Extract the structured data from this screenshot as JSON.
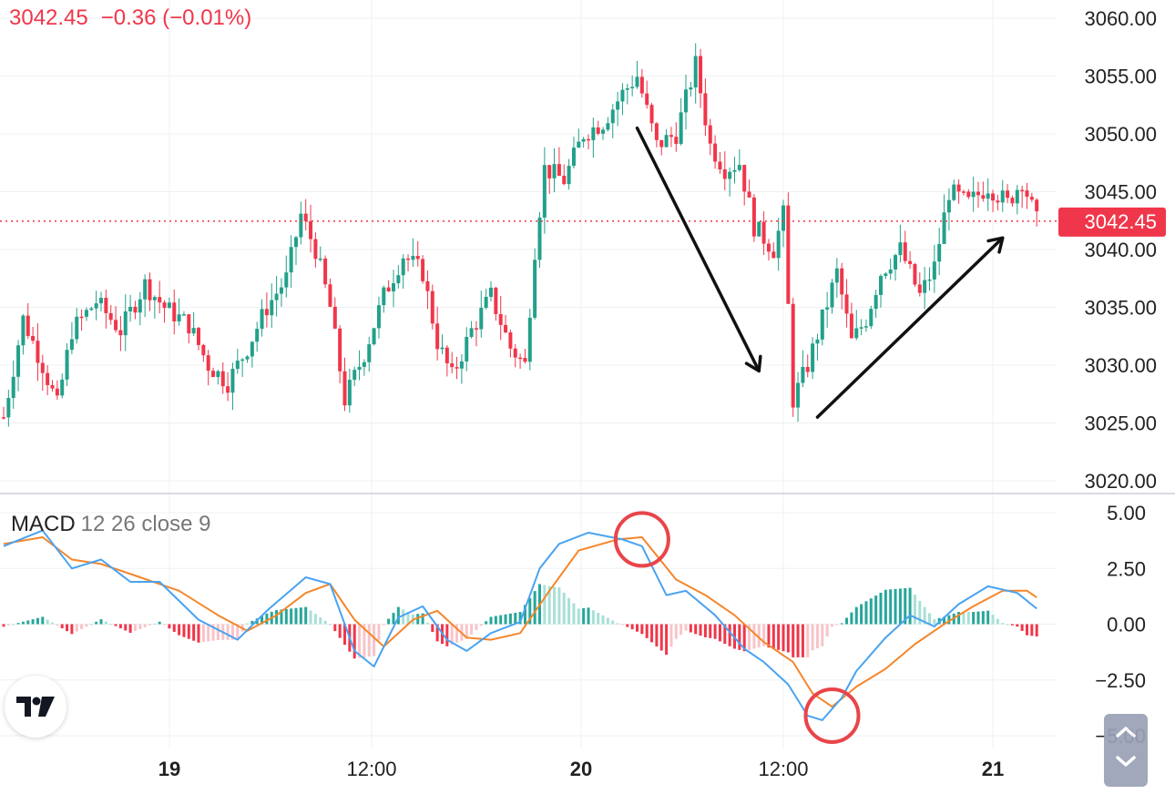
{
  "quote": {
    "price": "3042.45",
    "change": "−0.36",
    "change_pct": "(−0.01%)",
    "color": "#f0364a"
  },
  "macd_label": {
    "name": "MACD",
    "params": "12 26 close 9"
  },
  "colors": {
    "up": "#22a08a",
    "down": "#f0364a",
    "macd": "#4aa3f0",
    "signal": "#f5862a",
    "hist_up_strong": "#26a69a",
    "hist_up_weak": "#a8e0d6",
    "hist_down_strong": "#f0364a",
    "hist_down_weak": "#f8c4c8",
    "annotation": "#111111",
    "circle": "#e8454a"
  },
  "icons": {
    "logo": "tradingview-logo-icon",
    "scroll": "chevron-icon"
  },
  "chart_data": [
    {
      "type": "candlestick",
      "title": "",
      "x_ticks": [
        "19",
        "12:00",
        "20",
        "12:00",
        "21"
      ],
      "ylim": [
        3020,
        3060
      ],
      "y_ticks": [
        "3060.00",
        "3055.00",
        "3050.00",
        "3045.00",
        "3040.00",
        "3035.00",
        "3030.00",
        "3025.00",
        "3020.00"
      ],
      "last_price": "3042.45",
      "close_path": [
        {
          "t": 0,
          "v": 3025.5
        },
        {
          "t": 4,
          "v": 3034
        },
        {
          "t": 8,
          "v": 3030
        },
        {
          "t": 11,
          "v": 3026.5
        },
        {
          "t": 14,
          "v": 3033
        },
        {
          "t": 19,
          "v": 3035.5
        },
        {
          "t": 24,
          "v": 3033
        },
        {
          "t": 29,
          "v": 3037
        },
        {
          "t": 33,
          "v": 3035
        },
        {
          "t": 38,
          "v": 3033.5
        },
        {
          "t": 42,
          "v": 3030
        },
        {
          "t": 46,
          "v": 3028.5
        },
        {
          "t": 50,
          "v": 3031.5
        },
        {
          "t": 54,
          "v": 3035
        },
        {
          "t": 58,
          "v": 3037.5
        },
        {
          "t": 61,
          "v": 3043
        },
        {
          "t": 64,
          "v": 3040
        },
        {
          "t": 67,
          "v": 3035
        },
        {
          "t": 70,
          "v": 3027
        },
        {
          "t": 74,
          "v": 3031
        },
        {
          "t": 78,
          "v": 3036
        },
        {
          "t": 82,
          "v": 3039.5
        },
        {
          "t": 86,
          "v": 3038
        },
        {
          "t": 89,
          "v": 3032
        },
        {
          "t": 92,
          "v": 3029
        },
        {
          "t": 96,
          "v": 3033
        },
        {
          "t": 100,
          "v": 3036
        },
        {
          "t": 104,
          "v": 3031.5
        },
        {
          "t": 107,
          "v": 3030
        },
        {
          "t": 109,
          "v": 3040
        },
        {
          "t": 111,
          "v": 3047
        },
        {
          "t": 115,
          "v": 3046
        },
        {
          "t": 119,
          "v": 3050
        },
        {
          "t": 123,
          "v": 3051
        },
        {
          "t": 127,
          "v": 3053.5
        },
        {
          "t": 130,
          "v": 3055
        },
        {
          "t": 134,
          "v": 3049
        },
        {
          "t": 138,
          "v": 3050
        },
        {
          "t": 142,
          "v": 3056
        },
        {
          "t": 145,
          "v": 3049
        },
        {
          "t": 148,
          "v": 3047
        },
        {
          "t": 151,
          "v": 3047.5
        },
        {
          "t": 154,
          "v": 3042
        },
        {
          "t": 158,
          "v": 3040
        },
        {
          "t": 160,
          "v": 3043
        },
        {
          "t": 162,
          "v": 3027
        },
        {
          "t": 165,
          "v": 3030
        },
        {
          "t": 168,
          "v": 3034
        },
        {
          "t": 171,
          "v": 3038
        },
        {
          "t": 174,
          "v": 3032
        },
        {
          "t": 177,
          "v": 3034
        },
        {
          "t": 180,
          "v": 3038
        },
        {
          "t": 184,
          "v": 3040
        },
        {
          "t": 188,
          "v": 3036
        },
        {
          "t": 191,
          "v": 3038.5
        },
        {
          "t": 194,
          "v": 3045
        },
        {
          "t": 198,
          "v": 3044
        },
        {
          "t": 202,
          "v": 3045.5
        },
        {
          "t": 206,
          "v": 3044
        },
        {
          "t": 209,
          "v": 3046
        },
        {
          "t": 212,
          "v": 3042.45
        }
      ]
    },
    {
      "type": "line",
      "title": "MACD 12 26 close 9",
      "ylim": [
        -5,
        5
      ],
      "y_ticks": [
        "5.00",
        "2.50",
        "0.00",
        "−2.50",
        "−5.00"
      ],
      "series": [
        {
          "role": "macd",
          "points": [
            {
              "t": 0,
              "v": 3.5
            },
            {
              "t": 8,
              "v": 4.2
            },
            {
              "t": 14,
              "v": 2.5
            },
            {
              "t": 20,
              "v": 2.9
            },
            {
              "t": 26,
              "v": 1.9
            },
            {
              "t": 32,
              "v": 1.9
            },
            {
              "t": 40,
              "v": 0.2
            },
            {
              "t": 48,
              "v": -0.7
            },
            {
              "t": 54,
              "v": 0.6
            },
            {
              "t": 62,
              "v": 2.1
            },
            {
              "t": 67,
              "v": 1.8
            },
            {
              "t": 72,
              "v": -1.2
            },
            {
              "t": 76,
              "v": -1.9
            },
            {
              "t": 81,
              "v": 0.3
            },
            {
              "t": 86,
              "v": 0.8
            },
            {
              "t": 91,
              "v": -0.7
            },
            {
              "t": 95,
              "v": -1.2
            },
            {
              "t": 100,
              "v": -0.4
            },
            {
              "t": 106,
              "v": 0.1
            },
            {
              "t": 110,
              "v": 2.5
            },
            {
              "t": 114,
              "v": 3.6
            },
            {
              "t": 120,
              "v": 4.1
            },
            {
              "t": 127,
              "v": 3.8
            },
            {
              "t": 131,
              "v": 3.5
            },
            {
              "t": 136,
              "v": 1.3
            },
            {
              "t": 140,
              "v": 1.5
            },
            {
              "t": 146,
              "v": 0.4
            },
            {
              "t": 152,
              "v": -1.1
            },
            {
              "t": 156,
              "v": -1.7
            },
            {
              "t": 161,
              "v": -2.7
            },
            {
              "t": 165,
              "v": -4.1
            },
            {
              "t": 168,
              "v": -4.3
            },
            {
              "t": 172,
              "v": -3.3
            },
            {
              "t": 175,
              "v": -2.1
            },
            {
              "t": 181,
              "v": -0.6
            },
            {
              "t": 186,
              "v": 0.4
            },
            {
              "t": 191,
              "v": -0.1
            },
            {
              "t": 196,
              "v": 0.9
            },
            {
              "t": 202,
              "v": 1.7
            },
            {
              "t": 208,
              "v": 1.4
            },
            {
              "t": 212,
              "v": 0.7
            }
          ]
        },
        {
          "role": "signal",
          "points": [
            {
              "t": 0,
              "v": 3.6
            },
            {
              "t": 8,
              "v": 3.9
            },
            {
              "t": 14,
              "v": 2.9
            },
            {
              "t": 20,
              "v": 2.7
            },
            {
              "t": 28,
              "v": 2.1
            },
            {
              "t": 36,
              "v": 1.5
            },
            {
              "t": 44,
              "v": 0.4
            },
            {
              "t": 50,
              "v": -0.3
            },
            {
              "t": 56,
              "v": 0.4
            },
            {
              "t": 62,
              "v": 1.4
            },
            {
              "t": 67,
              "v": 1.8
            },
            {
              "t": 72,
              "v": 0.2
            },
            {
              "t": 78,
              "v": -1.0
            },
            {
              "t": 84,
              "v": 0.2
            },
            {
              "t": 89,
              "v": 0.6
            },
            {
              "t": 95,
              "v": -0.6
            },
            {
              "t": 100,
              "v": -0.7
            },
            {
              "t": 106,
              "v": -0.4
            },
            {
              "t": 112,
              "v": 1.5
            },
            {
              "t": 118,
              "v": 3.3
            },
            {
              "t": 126,
              "v": 3.8
            },
            {
              "t": 131,
              "v": 3.9
            },
            {
              "t": 138,
              "v": 2.0
            },
            {
              "t": 144,
              "v": 1.3
            },
            {
              "t": 150,
              "v": 0.4
            },
            {
              "t": 156,
              "v": -0.8
            },
            {
              "t": 162,
              "v": -1.7
            },
            {
              "t": 166,
              "v": -3.1
            },
            {
              "t": 170,
              "v": -3.7
            },
            {
              "t": 175,
              "v": -2.8
            },
            {
              "t": 181,
              "v": -2.0
            },
            {
              "t": 187,
              "v": -0.9
            },
            {
              "t": 193,
              "v": 0.0
            },
            {
              "t": 199,
              "v": 0.8
            },
            {
              "t": 205,
              "v": 1.5
            },
            {
              "t": 210,
              "v": 1.5
            },
            {
              "t": 212,
              "v": 1.2
            }
          ]
        }
      ]
    }
  ],
  "annotations": [
    {
      "kind": "arrow",
      "from": {
        "t": 130,
        "v": 3050.5
      },
      "to": {
        "t": 155,
        "v": 3029.5
      }
    },
    {
      "kind": "arrow",
      "from": {
        "t": 167,
        "v": 3025.5
      },
      "to": {
        "t": 205,
        "v": 3041
      }
    },
    {
      "kind": "circle",
      "pane": "macd",
      "at": {
        "t": 131,
        "v": 3.8
      }
    },
    {
      "kind": "circle",
      "pane": "macd",
      "at": {
        "t": 170,
        "v": -4.1
      }
    }
  ]
}
